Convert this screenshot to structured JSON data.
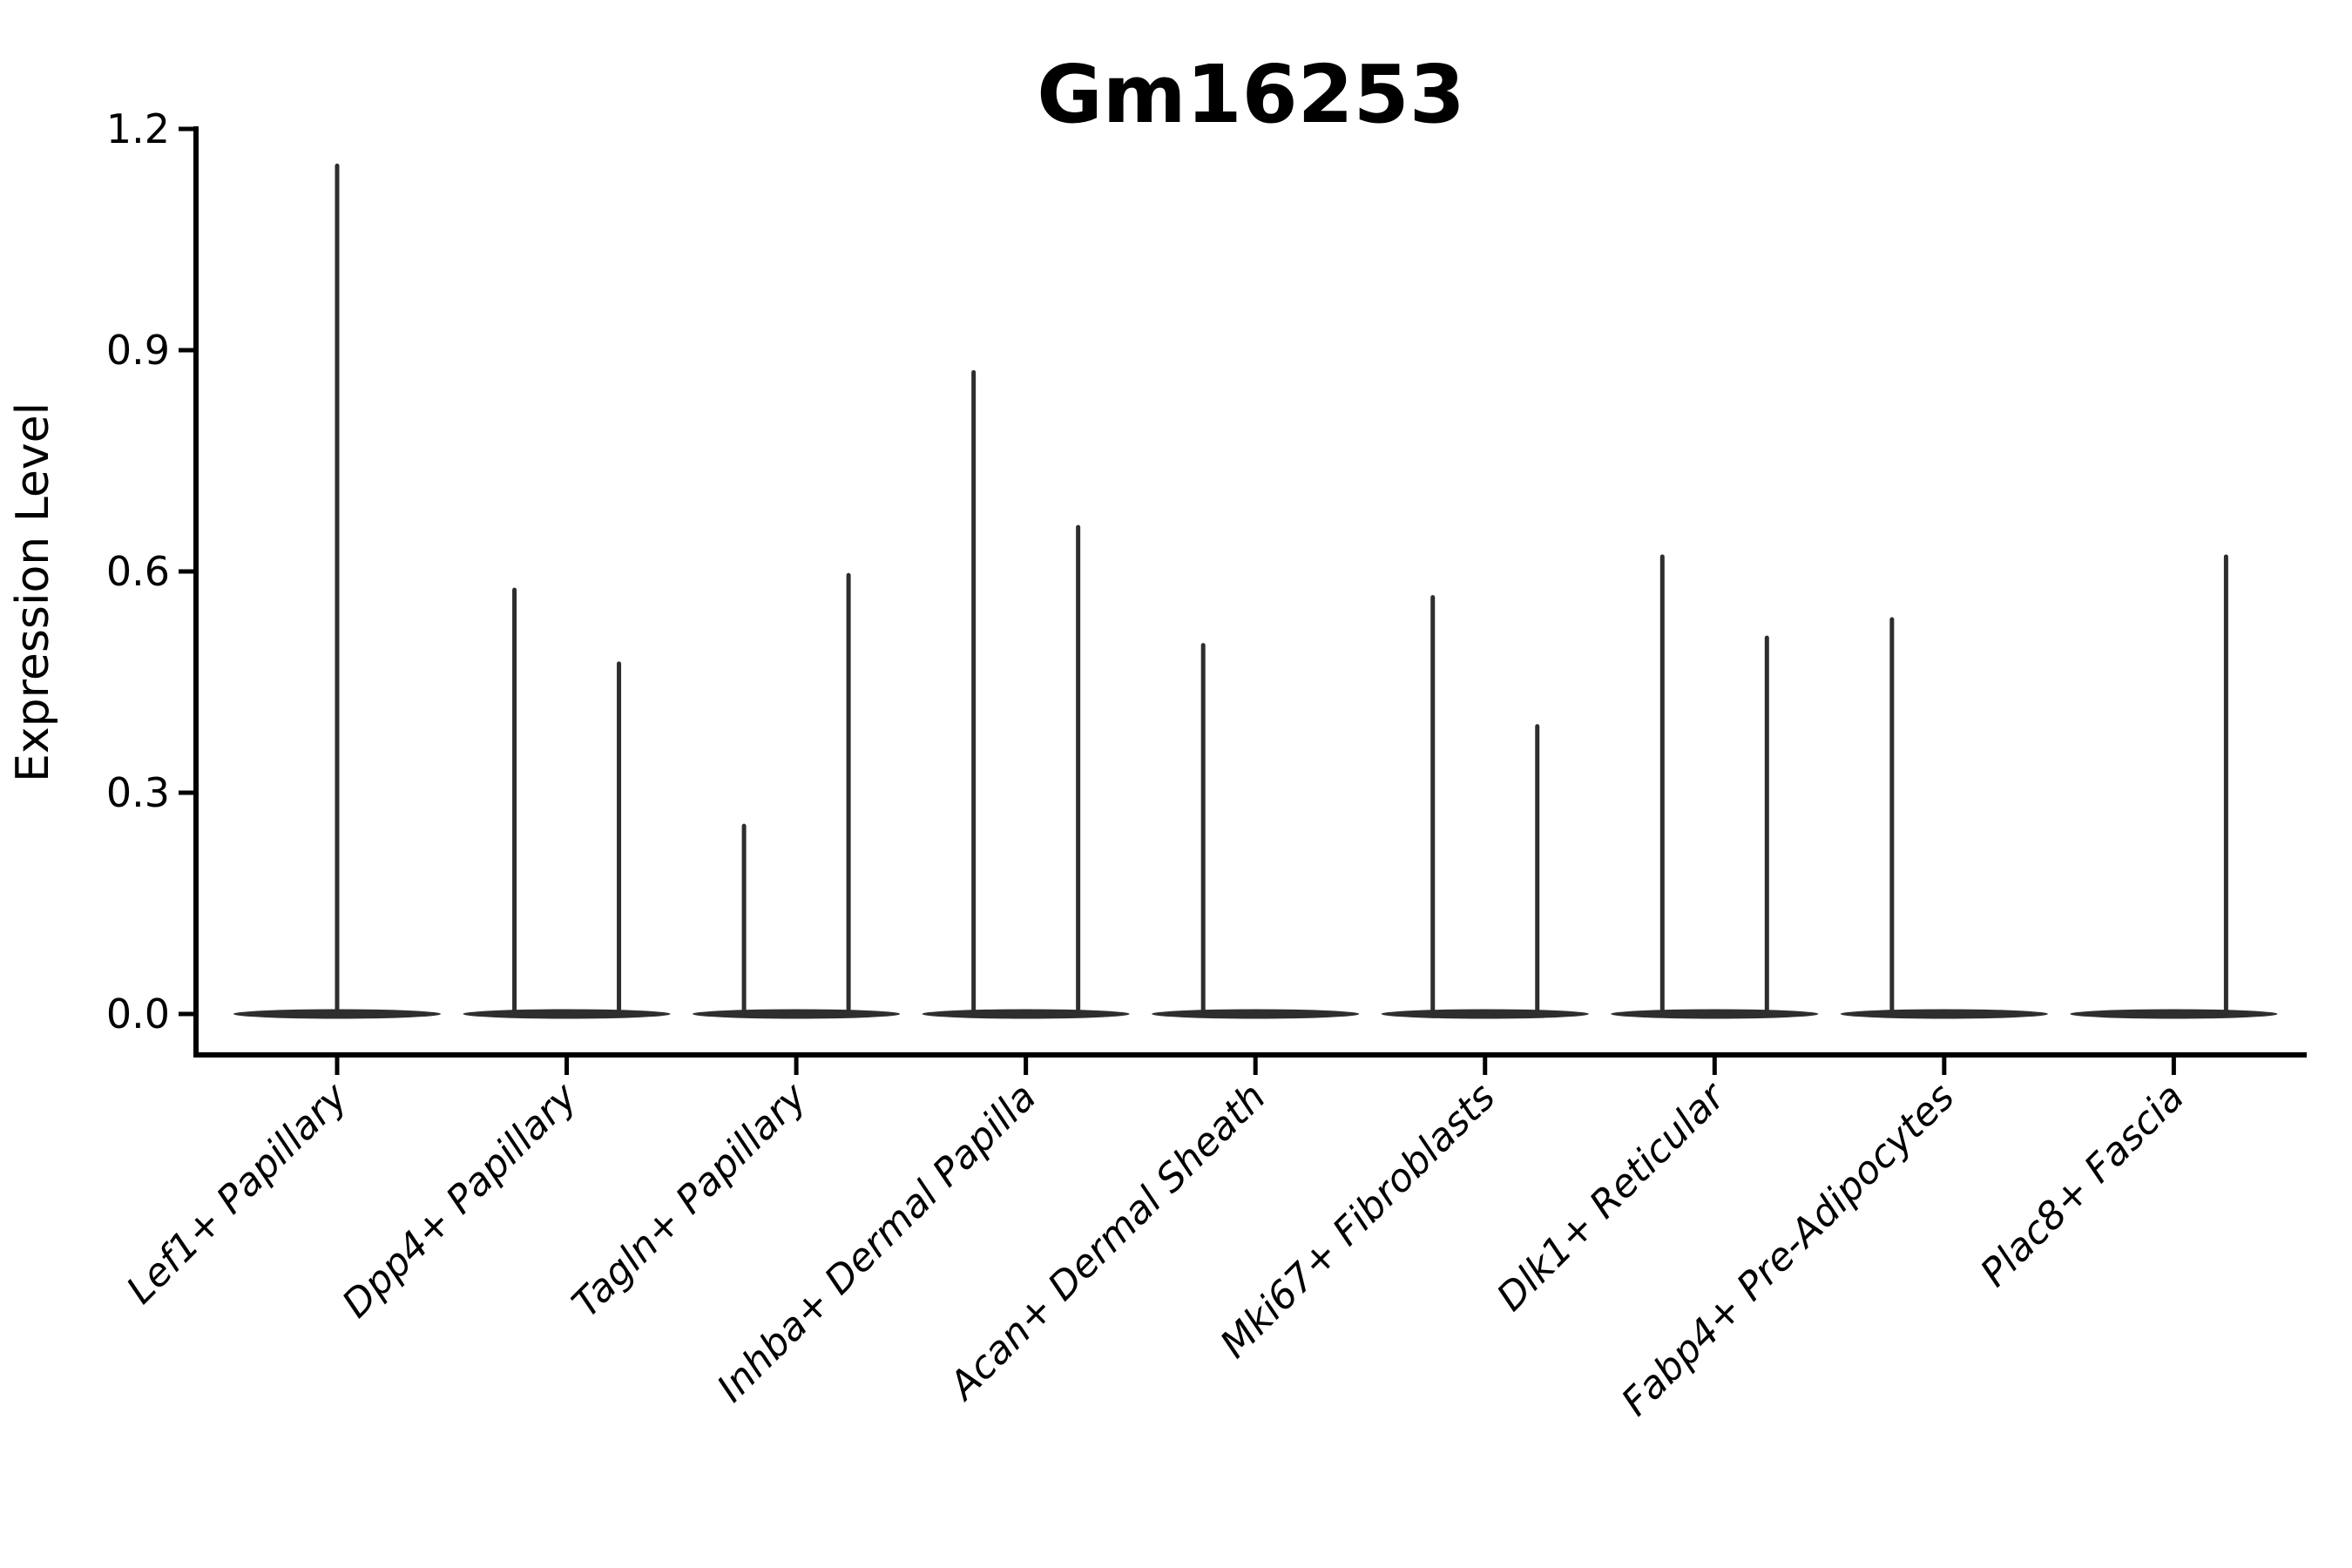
{
  "figure": {
    "title": "Gm16253",
    "ylabel": "Expression Level"
  },
  "colors": {
    "violin": "#2e2e2e",
    "axis": "#000000",
    "text": "#000000",
    "background": "#ffffff"
  },
  "chart_data": {
    "type": "violin",
    "title": "Gm16253",
    "xlabel": "",
    "ylabel": "Expression Level",
    "ylim": [
      -0.06,
      1.26
    ],
    "yticks": [
      0.0,
      0.3,
      0.6,
      0.9,
      1.2
    ],
    "ytick_labels": [
      "0.0",
      "0.3",
      "0.6",
      "0.9",
      "1.2"
    ],
    "grid": false,
    "legend_position": "none",
    "x_tick_rotation": 45,
    "baseline_value": 0.0,
    "categories": [
      "Lef1+ Papillary",
      "Dpp4+ Papillary",
      "Tagln+ Papillary",
      "Inhba+ Dermal Papilla",
      "Acan+ Dermal Sheath",
      "Mki67+ Fibroblasts",
      "Dlk1+ Reticular",
      "Fabp4+ Pre-Adipocytes",
      "Plac8+ Fascia"
    ],
    "violins": [
      {
        "category": "Lef1+ Papillary",
        "spikes": [
          {
            "position": "center",
            "max": 1.15
          }
        ]
      },
      {
        "category": "Dpp4+ Papillary",
        "spikes": [
          {
            "position": "left",
            "max": 0.575
          },
          {
            "position": "right",
            "max": 0.475
          }
        ]
      },
      {
        "category": "Tagln+ Papillary",
        "spikes": [
          {
            "position": "left",
            "max": 0.255
          },
          {
            "position": "right",
            "max": 0.595
          }
        ]
      },
      {
        "category": "Inhba+ Dermal Papilla",
        "spikes": [
          {
            "position": "left",
            "max": 0.87
          },
          {
            "position": "right",
            "max": 0.66
          }
        ]
      },
      {
        "category": "Acan+ Dermal Sheath",
        "spikes": [
          {
            "position": "left",
            "max": 0.5
          }
        ]
      },
      {
        "category": "Mki67+ Fibroblasts",
        "spikes": [
          {
            "position": "left",
            "max": 0.565
          },
          {
            "position": "right",
            "max": 0.39
          }
        ]
      },
      {
        "category": "Dlk1+ Reticular",
        "spikes": [
          {
            "position": "left",
            "max": 0.62
          },
          {
            "position": "right",
            "max": 0.51
          }
        ]
      },
      {
        "category": "Fabp4+ Pre-Adipocytes",
        "spikes": [
          {
            "position": "left",
            "max": 0.535
          }
        ]
      },
      {
        "category": "Plac8+ Fascia",
        "spikes": [
          {
            "position": "right",
            "max": 0.62
          }
        ]
      }
    ]
  }
}
